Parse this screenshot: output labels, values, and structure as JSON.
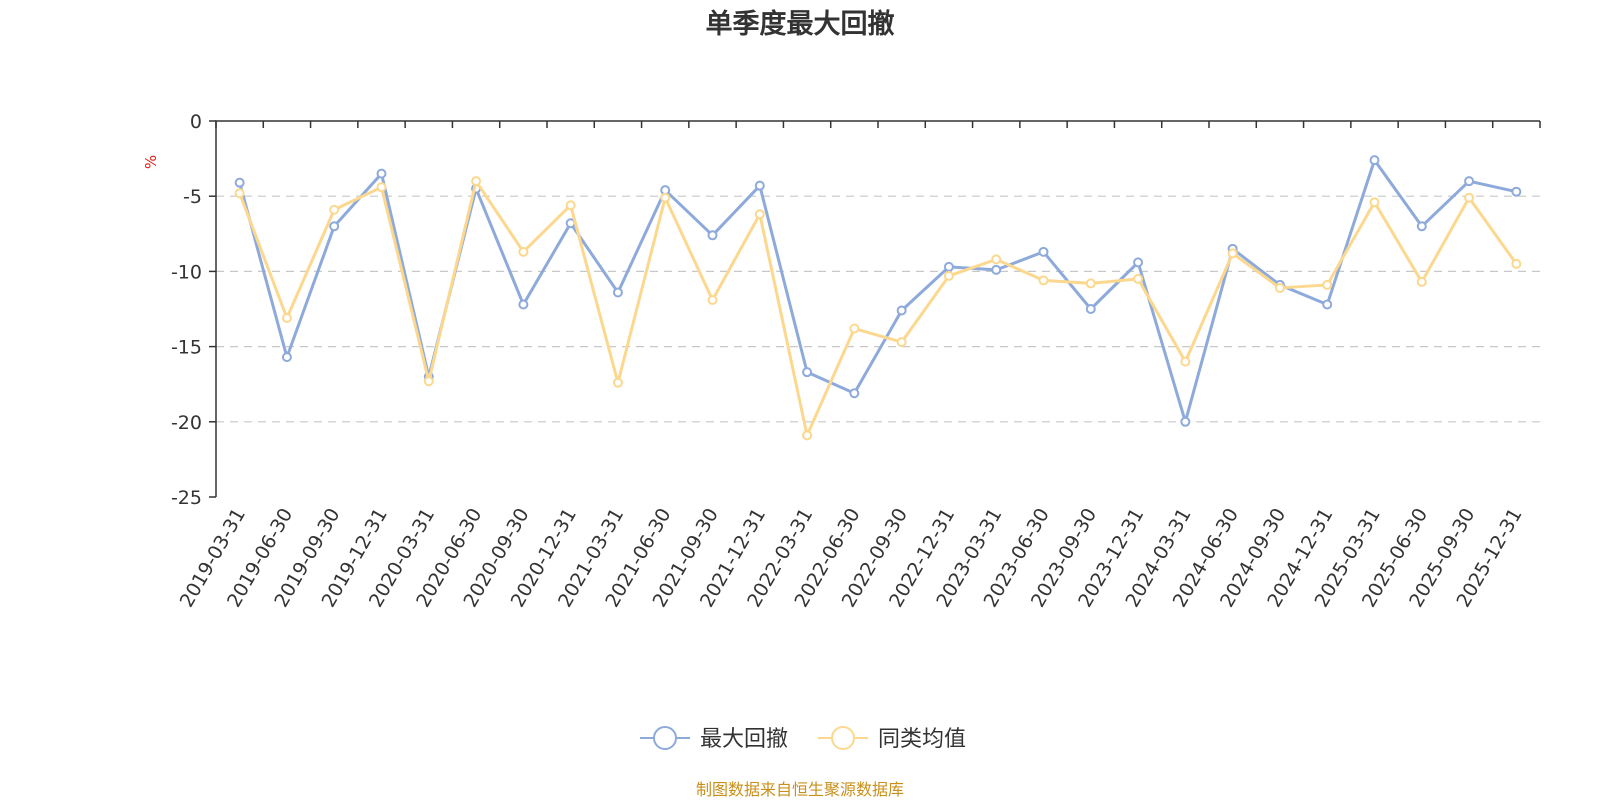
{
  "chart_data": {
    "type": "line",
    "title": "单季度最大回撤",
    "ylabel": "%",
    "xlabel": "",
    "ylim": [
      -25,
      0
    ],
    "yticks": [
      0,
      -5,
      -10,
      -15,
      -20,
      -25
    ],
    "grid": true,
    "legend_position": "bottom-center",
    "categories": [
      "2019-03-31",
      "2019-06-30",
      "2019-09-30",
      "2019-12-31",
      "2020-03-31",
      "2020-06-30",
      "2020-09-30",
      "2020-12-31",
      "2021-03-31",
      "2021-06-30",
      "2021-09-30",
      "2021-12-31",
      "2022-03-31",
      "2022-06-30",
      "2022-09-30",
      "2022-12-31",
      "2023-03-31",
      "2023-06-30",
      "2023-09-30",
      "2023-12-31",
      "2024-03-31",
      "2024-06-30",
      "2024-09-30",
      "2024-12-31",
      "2025-03-31",
      "2025-06-30",
      "2025-09-30",
      "2025-12-31"
    ],
    "series": [
      {
        "name": "最大回撤",
        "color": "#8eaadb",
        "values": [
          -4.1,
          -15.7,
          -7.0,
          -3.5,
          -17.0,
          -4.5,
          -12.2,
          -6.8,
          -11.4,
          -4.6,
          -7.6,
          -4.3,
          -16.7,
          -18.1,
          -12.6,
          -9.7,
          -9.9,
          -8.7,
          -12.5,
          -9.4,
          -20.0,
          -8.5,
          -10.9,
          -12.2,
          -2.6,
          -7.0,
          -4.0,
          -4.7
        ]
      },
      {
        "name": "同类均值",
        "color": "#fcd88f",
        "values": [
          -4.8,
          -13.1,
          -5.9,
          -4.4,
          -17.3,
          -4.0,
          -8.7,
          -5.6,
          -17.4,
          -5.1,
          -11.9,
          -6.2,
          -20.9,
          -13.8,
          -14.7,
          -10.3,
          -9.2,
          -10.6,
          -10.8,
          -10.5,
          -16.0,
          -8.8,
          -11.1,
          -10.9,
          -5.4,
          -10.7,
          -5.1,
          -9.5
        ]
      }
    ],
    "source": "制图数据来自恒生聚源数据库"
  }
}
